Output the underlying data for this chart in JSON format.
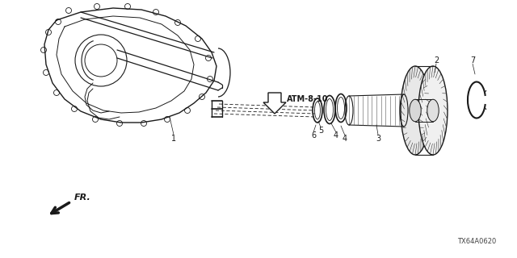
{
  "bg_color": "#ffffff",
  "fig_width": 6.4,
  "fig_height": 3.2,
  "dpi": 100,
  "watermark": "TX64A0620",
  "reference_label": "ATM-8-10",
  "fr_label": "FR.",
  "line_color": "#1a1a1a"
}
